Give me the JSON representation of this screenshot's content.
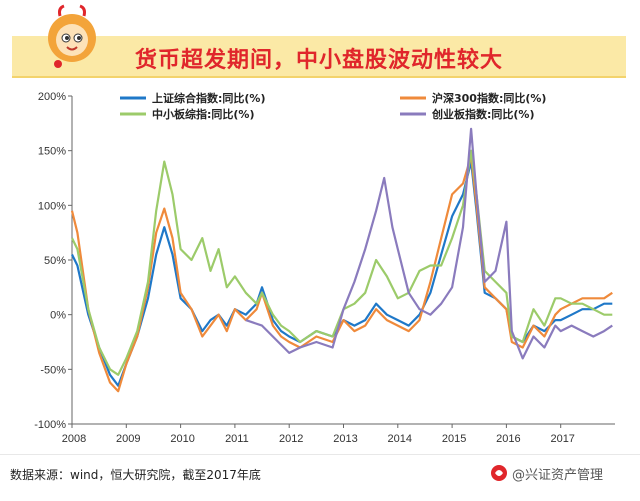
{
  "page": {
    "title": "货币超发期间，中小盘股波动性较大",
    "source": "数据来源：wind，恒大研究院，截至2017年底",
    "brand": "@兴证资产管理"
  },
  "colors": {
    "title": "#e0262b",
    "banner": "#fbe9a6",
    "sh_composite": "#1f78c8",
    "csi300": "#ef8a3b",
    "sme": "#9ccb6a",
    "chinext": "#8a7bbd"
  },
  "chart_data": {
    "type": "line",
    "title": "",
    "xlabel": "",
    "ylabel": "",
    "xlim": [
      2008.0,
      2018.0
    ],
    "ylim": [
      -100,
      200
    ],
    "x_ticks": [
      "2008",
      "2009",
      "2010",
      "2011",
      "2012",
      "2013",
      "2014",
      "2015",
      "2016",
      "2017"
    ],
    "y_ticks": [
      "200%",
      "150%",
      "100%",
      "50%",
      "0%",
      "-50%",
      "-100%"
    ],
    "y_tick_values": [
      200,
      150,
      100,
      50,
      0,
      -50,
      -100
    ],
    "series": [
      {
        "name": "上证综合指数:同比(%)",
        "color": "#1f78c8",
        "x": [
          2008.0,
          2008.1,
          2008.3,
          2008.5,
          2008.7,
          2008.85,
          2009.0,
          2009.2,
          2009.4,
          2009.55,
          2009.7,
          2009.85,
          2010.0,
          2010.2,
          2010.4,
          2010.55,
          2010.7,
          2010.85,
          2011.0,
          2011.2,
          2011.4,
          2011.5,
          2011.7,
          2011.85,
          2012.0,
          2012.2,
          2012.5,
          2012.8,
          2013.0,
          2013.2,
          2013.4,
          2013.6,
          2013.8,
          2014.0,
          2014.2,
          2014.4,
          2014.6,
          2014.8,
          2015.0,
          2015.2,
          2015.35,
          2015.45,
          2015.6,
          2015.8,
          2016.0,
          2016.1,
          2016.3,
          2016.5,
          2016.7,
          2016.9,
          2017.0,
          2017.2,
          2017.4,
          2017.6,
          2017.8,
          2017.95
        ],
        "values": [
          55,
          45,
          0,
          -30,
          -55,
          -65,
          -45,
          -20,
          15,
          55,
          80,
          55,
          15,
          5,
          -15,
          -5,
          0,
          -10,
          5,
          0,
          10,
          25,
          -5,
          -15,
          -20,
          -25,
          -15,
          -20,
          -5,
          -10,
          -5,
          10,
          0,
          -5,
          -10,
          0,
          20,
          55,
          90,
          110,
          140,
          95,
          20,
          15,
          5,
          -20,
          -25,
          -10,
          -15,
          -5,
          -5,
          0,
          5,
          5,
          10,
          10
        ]
      },
      {
        "name": "沪深300指数:同比(%)",
        "color": "#ef8a3b",
        "x": [
          2008.0,
          2008.1,
          2008.3,
          2008.5,
          2008.7,
          2008.85,
          2009.0,
          2009.2,
          2009.4,
          2009.55,
          2009.7,
          2009.85,
          2010.0,
          2010.2,
          2010.4,
          2010.55,
          2010.7,
          2010.85,
          2011.0,
          2011.2,
          2011.4,
          2011.5,
          2011.7,
          2011.85,
          2012.0,
          2012.2,
          2012.5,
          2012.8,
          2013.0,
          2013.2,
          2013.4,
          2013.6,
          2013.8,
          2014.0,
          2014.2,
          2014.4,
          2014.6,
          2014.8,
          2015.0,
          2015.2,
          2015.35,
          2015.45,
          2015.6,
          2015.8,
          2016.0,
          2016.1,
          2016.3,
          2016.5,
          2016.7,
          2016.9,
          2017.0,
          2017.2,
          2017.4,
          2017.6,
          2017.8,
          2017.95
        ],
        "values": [
          95,
          75,
          5,
          -35,
          -62,
          -70,
          -45,
          -20,
          25,
          75,
          97,
          70,
          20,
          5,
          -20,
          -10,
          0,
          -15,
          5,
          -5,
          5,
          20,
          -10,
          -20,
          -25,
          -30,
          -20,
          -25,
          -5,
          -15,
          -10,
          5,
          -5,
          -10,
          -15,
          -5,
          30,
          70,
          110,
          120,
          145,
          100,
          25,
          15,
          5,
          -25,
          -30,
          -10,
          -20,
          0,
          5,
          10,
          15,
          15,
          15,
          20
        ]
      },
      {
        "name": "中小板综指:同比(%)",
        "color": "#9ccb6a",
        "x": [
          2008.0,
          2008.1,
          2008.3,
          2008.5,
          2008.7,
          2008.85,
          2009.0,
          2009.2,
          2009.4,
          2009.55,
          2009.7,
          2009.85,
          2010.0,
          2010.2,
          2010.4,
          2010.55,
          2010.7,
          2010.85,
          2011.0,
          2011.2,
          2011.4,
          2011.5,
          2011.7,
          2011.85,
          2012.0,
          2012.2,
          2012.5,
          2012.8,
          2013.0,
          2013.2,
          2013.4,
          2013.6,
          2013.8,
          2014.0,
          2014.2,
          2014.4,
          2014.6,
          2014.8,
          2015.0,
          2015.2,
          2015.35,
          2015.45,
          2015.6,
          2015.8,
          2016.0,
          2016.1,
          2016.3,
          2016.5,
          2016.7,
          2016.9,
          2017.0,
          2017.2,
          2017.4,
          2017.6,
          2017.8,
          2017.95
        ],
        "values": [
          70,
          60,
          5,
          -30,
          -50,
          -55,
          -40,
          -15,
          30,
          95,
          140,
          110,
          60,
          50,
          70,
          40,
          60,
          25,
          35,
          20,
          10,
          20,
          0,
          -10,
          -15,
          -25,
          -15,
          -20,
          5,
          10,
          20,
          50,
          35,
          15,
          20,
          40,
          45,
          45,
          70,
          100,
          150,
          110,
          40,
          30,
          20,
          -20,
          -25,
          5,
          -10,
          15,
          15,
          10,
          10,
          5,
          0,
          0
        ]
      },
      {
        "name": "创业板指数:同比(%)",
        "color": "#8a7bbd",
        "x": [
          2011.2,
          2011.5,
          2011.8,
          2012.0,
          2012.2,
          2012.5,
          2012.8,
          2013.0,
          2013.2,
          2013.4,
          2013.6,
          2013.75,
          2013.9,
          2014.0,
          2014.2,
          2014.4,
          2014.6,
          2014.8,
          2015.0,
          2015.2,
          2015.35,
          2015.45,
          2015.6,
          2015.8,
          2016.0,
          2016.1,
          2016.3,
          2016.5,
          2016.7,
          2016.9,
          2017.0,
          2017.2,
          2017.4,
          2017.6,
          2017.8,
          2017.95
        ],
        "values": [
          -5,
          -10,
          -25,
          -35,
          -30,
          -25,
          -30,
          5,
          30,
          60,
          95,
          125,
          80,
          60,
          20,
          5,
          0,
          10,
          25,
          80,
          170,
          110,
          30,
          40,
          85,
          -15,
          -40,
          -20,
          -30,
          -10,
          -15,
          -10,
          -15,
          -20,
          -15,
          -10
        ]
      }
    ],
    "legend": {
      "position": "top",
      "entries": [
        "上证综合指数:同比(%)",
        "沪深300指数:同比(%)",
        "中小板综指:同比(%)",
        "创业板指数:同比(%)"
      ]
    },
    "grid": false
  }
}
